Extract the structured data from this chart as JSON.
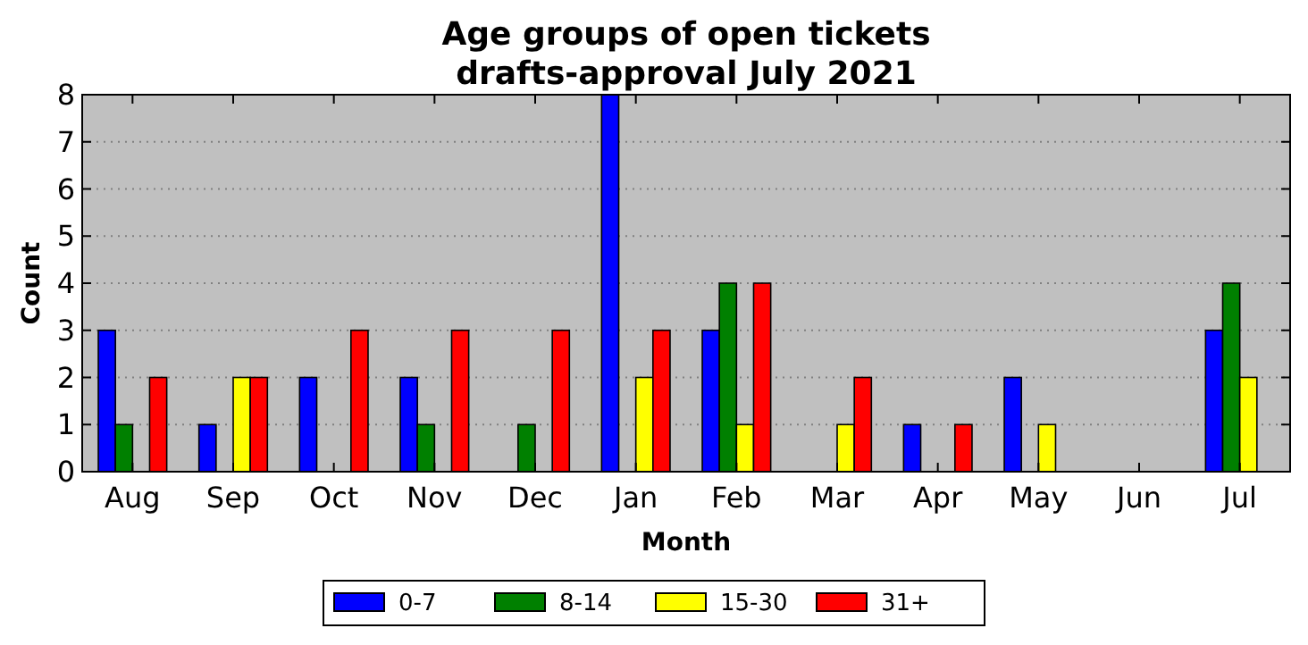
{
  "chart_data": {
    "type": "bar",
    "title": "Age groups of open tickets\ndrafts-approval July 2021",
    "xlabel": "Month",
    "ylabel": "Count",
    "categories": [
      "Aug",
      "Sep",
      "Oct",
      "Nov",
      "Dec",
      "Jan",
      "Feb",
      "Mar",
      "Apr",
      "May",
      "Jun",
      "Jul"
    ],
    "series": [
      {
        "name": "0-7",
        "color": "#0000ff",
        "values": [
          3,
          1,
          2,
          2,
          0,
          8,
          3,
          0,
          1,
          2,
          0,
          3
        ]
      },
      {
        "name": "8-14",
        "color": "#008000",
        "values": [
          1,
          0,
          0,
          1,
          1,
          0,
          4,
          0,
          0,
          0,
          0,
          4
        ]
      },
      {
        "name": "15-30",
        "color": "#ffff00",
        "values": [
          0,
          2,
          0,
          0,
          0,
          2,
          1,
          1,
          0,
          1,
          0,
          2
        ]
      },
      {
        "name": "31+",
        "color": "#ff0000",
        "values": [
          2,
          2,
          3,
          3,
          3,
          3,
          4,
          2,
          1,
          0,
          0,
          0
        ]
      }
    ],
    "ylim": [
      0,
      8
    ],
    "yticks": [
      0,
      1,
      2,
      3,
      4,
      5,
      6,
      7,
      8
    ],
    "grid": "y",
    "legend": "bottom"
  }
}
